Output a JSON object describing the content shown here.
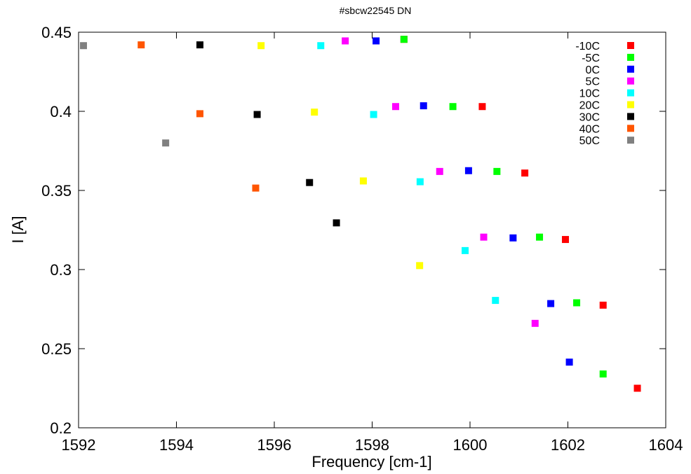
{
  "chart_data": {
    "type": "scatter",
    "title": "#sbcw22545 DN",
    "xlabel": "Frequency [cm-1]",
    "ylabel": "I [A]",
    "xlim": [
      1592,
      1604
    ],
    "ylim": [
      0.2,
      0.45
    ],
    "xticks": [
      1592,
      1594,
      1596,
      1598,
      1600,
      1602,
      1604
    ],
    "yticks": [
      0.2,
      0.25,
      0.3,
      0.35,
      0.4,
      0.45
    ],
    "ytick_labels": [
      "0.2",
      "0.25",
      "0.3",
      "0.35",
      "0.4",
      "0.45"
    ],
    "grid": false,
    "legend_position": "top-right",
    "series": [
      {
        "name": "-10C",
        "color": "#ff0000",
        "points": [
          [
            1598.65,
            0.4455
          ],
          [
            1600.25,
            0.403
          ],
          [
            1601.12,
            0.361
          ],
          [
            1601.95,
            0.319
          ],
          [
            1602.72,
            0.2775
          ],
          [
            1603.42,
            0.225
          ]
        ]
      },
      {
        "name": "-5C",
        "color": "#00ff00",
        "points": [
          [
            1598.65,
            0.4455
          ],
          [
            1599.65,
            0.403
          ],
          [
            1600.55,
            0.362
          ],
          [
            1601.42,
            0.3205
          ],
          [
            1602.18,
            0.279
          ],
          [
            1602.72,
            0.234
          ]
        ]
      },
      {
        "name": "0C",
        "color": "#0000ff",
        "points": [
          [
            1598.08,
            0.4445
          ],
          [
            1599.05,
            0.4035
          ],
          [
            1599.97,
            0.3625
          ],
          [
            1600.88,
            0.32
          ],
          [
            1601.65,
            0.2785
          ],
          [
            1602.03,
            0.2415
          ]
        ]
      },
      {
        "name": "5C",
        "color": "#ff00ff",
        "points": [
          [
            1597.45,
            0.4445
          ],
          [
            1598.48,
            0.403
          ],
          [
            1599.38,
            0.362
          ],
          [
            1600.28,
            0.3205
          ],
          [
            1601.33,
            0.266
          ]
        ]
      },
      {
        "name": "10C",
        "color": "#00ffff",
        "points": [
          [
            1596.95,
            0.4415
          ],
          [
            1598.03,
            0.398
          ],
          [
            1598.98,
            0.3555
          ],
          [
            1599.9,
            0.312
          ],
          [
            1600.52,
            0.2805
          ]
        ]
      },
      {
        "name": "20C",
        "color": "#ffff00",
        "points": [
          [
            1595.73,
            0.4415
          ],
          [
            1596.82,
            0.3995
          ],
          [
            1597.82,
            0.356
          ],
          [
            1598.97,
            0.3025
          ]
        ]
      },
      {
        "name": "30C",
        "color": "#000000",
        "points": [
          [
            1594.48,
            0.442
          ],
          [
            1595.65,
            0.398
          ],
          [
            1596.72,
            0.355
          ],
          [
            1597.27,
            0.3295
          ]
        ]
      },
      {
        "name": "40C",
        "color": "#ff5500",
        "points": [
          [
            1593.28,
            0.442
          ],
          [
            1594.48,
            0.3985
          ],
          [
            1595.62,
            0.3515
          ]
        ]
      },
      {
        "name": "50C",
        "color": "#808080",
        "points": [
          [
            1592.1,
            0.4415
          ],
          [
            1593.78,
            0.38
          ]
        ]
      }
    ]
  }
}
